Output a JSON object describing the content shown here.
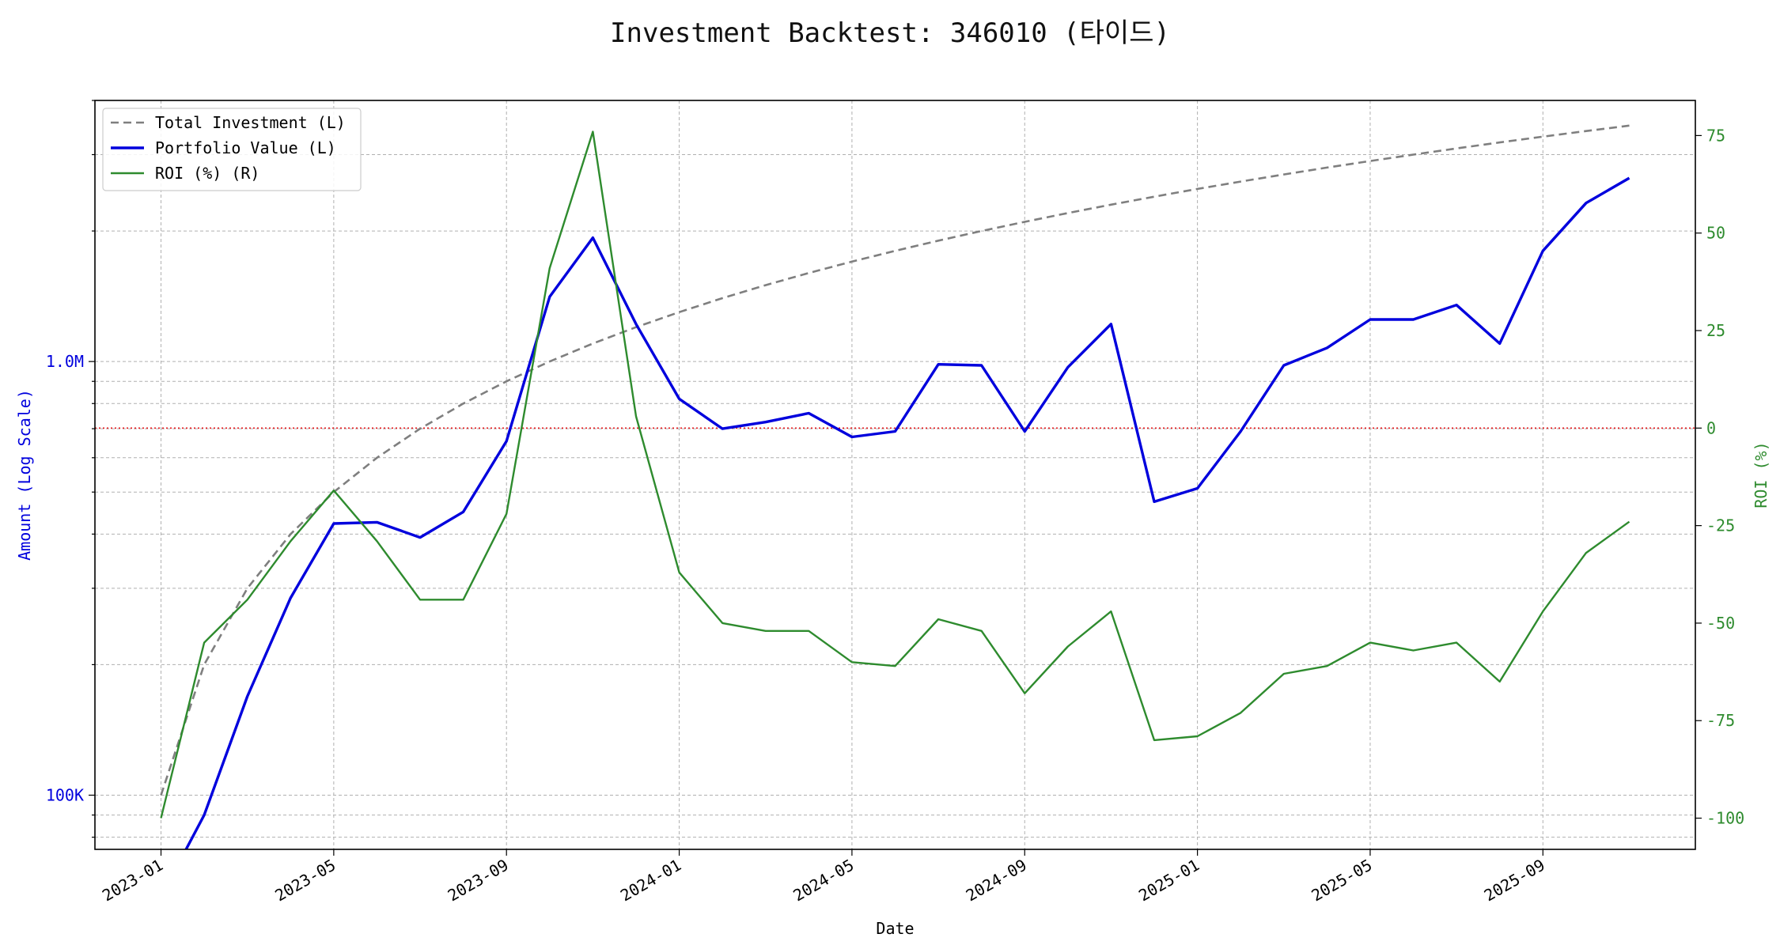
{
  "chart_data": {
    "type": "line",
    "title": "Investment Backtest: 346010 (타이드)",
    "xlabel": "Date",
    "ylabel_left": "Amount (Log Scale)",
    "ylabel_right": "ROI (%)",
    "y_left_scale": "log",
    "y_left_range": [
      75000,
      4000000
    ],
    "y_right_range": [
      -108,
      84
    ],
    "y_left_ticks": [
      {
        "value": 100000,
        "label": "100K"
      },
      {
        "value": 1000000,
        "label": "1.0M"
      }
    ],
    "y_right_ticks": [
      -100,
      -75,
      -50,
      -25,
      0,
      25,
      50,
      75
    ],
    "x_ticks": [
      "2023-01",
      "2023-05",
      "2023-09",
      "2024-01",
      "2024-05",
      "2024-09",
      "2025-01",
      "2025-05",
      "2025-09"
    ],
    "x": [
      "2023-01",
      "2023-02",
      "2023-03",
      "2023-04",
      "2023-05",
      "2023-06",
      "2023-07",
      "2023-08",
      "2023-09",
      "2023-10",
      "2023-11",
      "2023-12",
      "2024-01",
      "2024-02",
      "2024-03",
      "2024-04",
      "2024-05",
      "2024-06",
      "2024-07",
      "2024-08",
      "2024-09",
      "2024-10",
      "2024-11",
      "2024-12",
      "2025-01",
      "2025-02",
      "2025-03",
      "2025-04",
      "2025-05",
      "2025-06",
      "2025-07",
      "2025-08",
      "2025-09",
      "2025-10",
      "2025-11"
    ],
    "grid": true,
    "legend_position": "upper-left",
    "reference_line": {
      "axis": "right",
      "value": 0,
      "color": "#e41a1c",
      "style": "dotted"
    },
    "series": [
      {
        "name": "Total Investment (L)",
        "axis": "left",
        "color": "#7f7f7f",
        "style": "dashed",
        "values": [
          100000,
          200000,
          300000,
          400000,
          500000,
          600000,
          700000,
          800000,
          900000,
          1000000,
          1100000,
          1200000,
          1300000,
          1400000,
          1500000,
          1600000,
          1700000,
          1800000,
          1900000,
          2000000,
          2100000,
          2200000,
          2300000,
          2400000,
          2500000,
          2600000,
          2700000,
          2800000,
          2900000,
          3000000,
          3100000,
          3200000,
          3300000,
          3400000,
          3500000
        ]
      },
      {
        "name": "Portfolio Value (L)",
        "axis": "left",
        "color": "#0000dd",
        "style": "solid",
        "values": [
          0,
          90000,
          169000,
          285000,
          423000,
          426000,
          393000,
          450000,
          655000,
          1410000,
          1930000,
          1220000,
          820000,
          700000,
          725000,
          760000,
          670000,
          690000,
          985000,
          980000,
          690000,
          970000,
          1220000,
          475000,
          510000,
          690000,
          980000,
          1075000,
          1250000,
          1250000,
          1350000,
          1100000,
          1800000,
          2320000,
          2650000
        ]
      },
      {
        "name": "ROI (%) (R)",
        "axis": "right",
        "color": "#2e8b2e",
        "style": "solid",
        "values": [
          -100,
          -55,
          -44,
          -29,
          -16,
          -29,
          -44,
          -44,
          -22,
          41,
          76,
          3,
          -37,
          -50,
          -52,
          -52,
          -60,
          -61,
          -49,
          -52,
          -68,
          -56,
          -47,
          -80,
          -79,
          -73,
          -63,
          -61,
          -55,
          -57,
          -55,
          -65,
          -47,
          -32,
          -24
        ]
      }
    ]
  }
}
